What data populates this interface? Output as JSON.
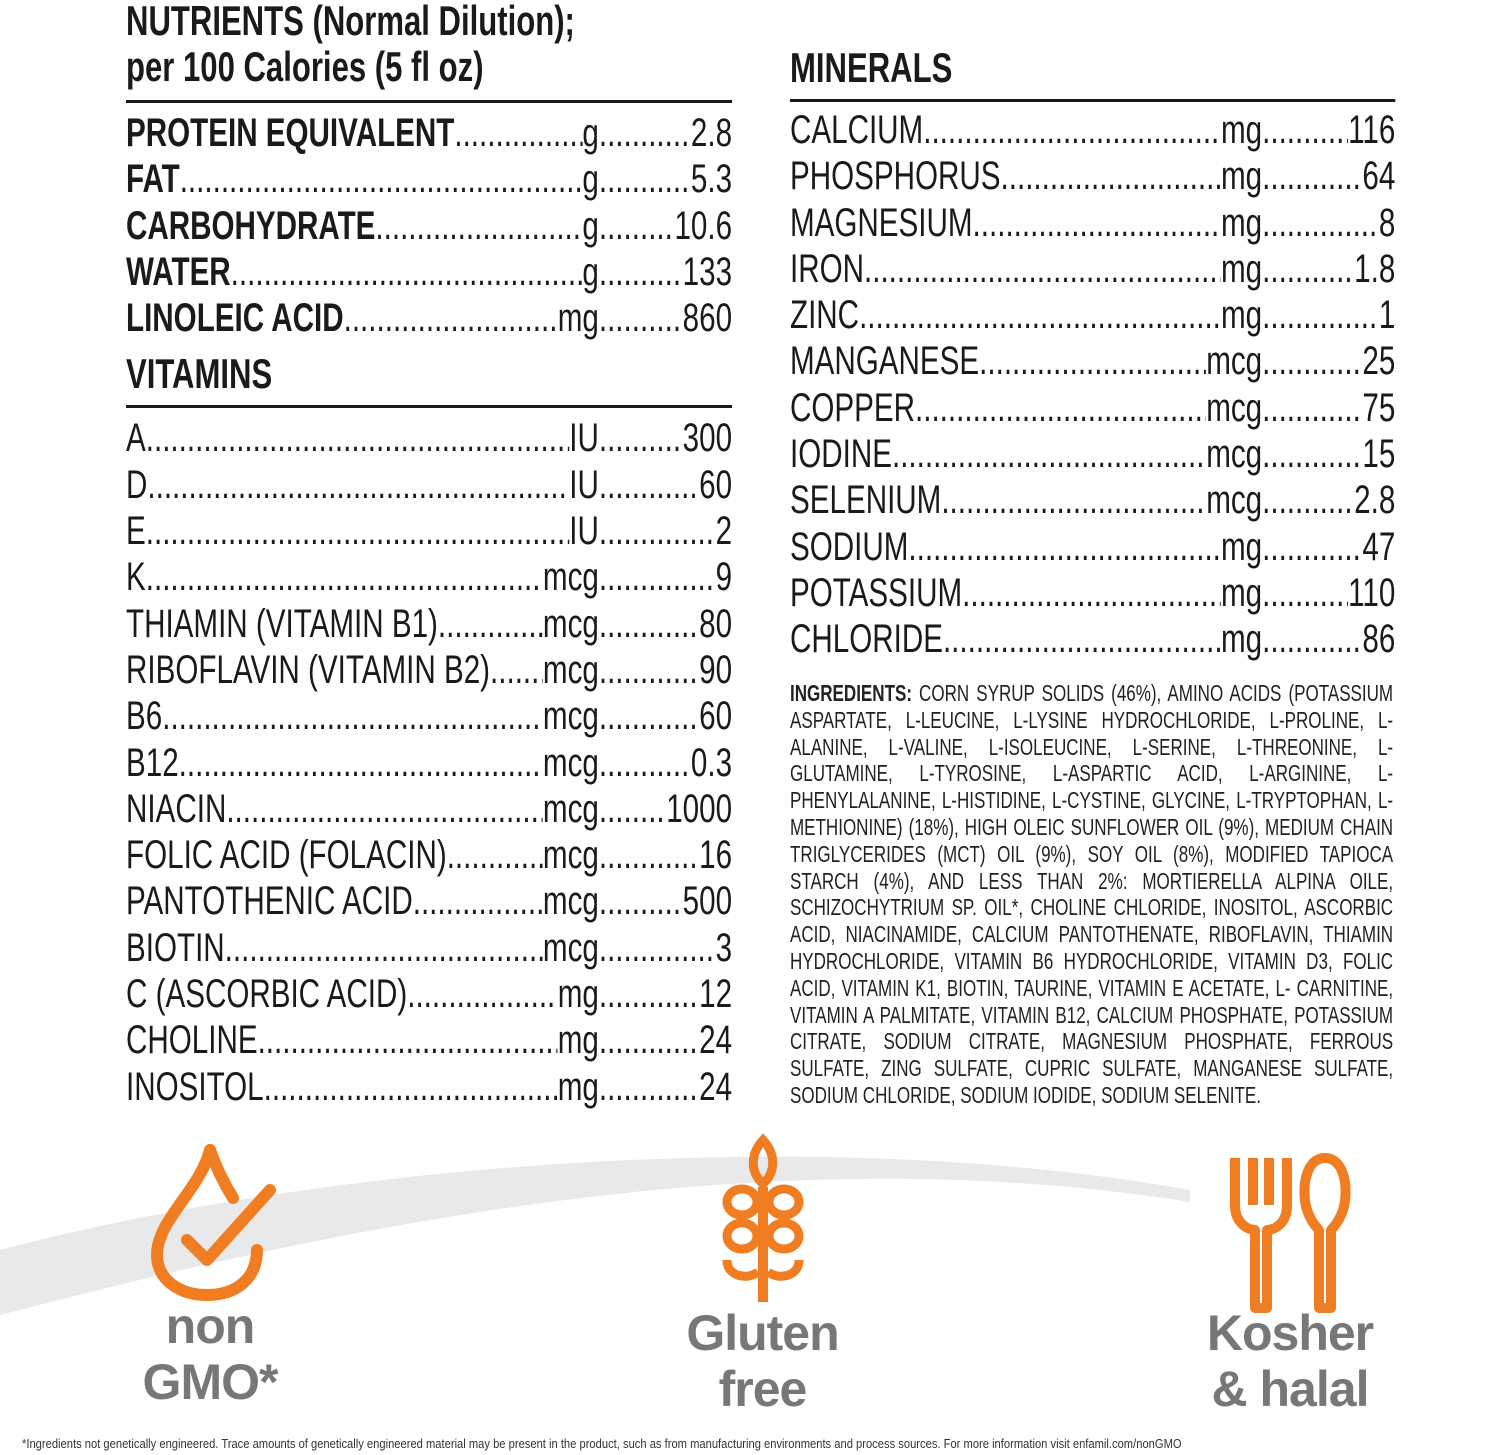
{
  "nutrients": {
    "title_line1": "NUTRIENTS (Normal Dilution);",
    "title_line2": "per 100 Calories (5 fl oz)",
    "rows": [
      {
        "name": "PROTEIN EQUIVALENT",
        "unit": "g",
        "value": "2.8"
      },
      {
        "name": "FAT",
        "unit": "g",
        "value": "5.3"
      },
      {
        "name": "CARBOHYDRATE",
        "unit": "g",
        "value": "10.6"
      },
      {
        "name": "WATER",
        "unit": "g",
        "value": "133"
      },
      {
        "name": "LINOLEIC ACID",
        "unit": "mg",
        "value": "860"
      }
    ]
  },
  "vitamins": {
    "title": "VITAMINS",
    "rows": [
      {
        "name": "A",
        "unit": "IU",
        "value": "300"
      },
      {
        "name": "D",
        "unit": "IU",
        "value": "60"
      },
      {
        "name": "E",
        "unit": "IU",
        "value": "2"
      },
      {
        "name": "K",
        "unit": "mcg",
        "value": "9"
      },
      {
        "name": "THIAMIN (VITAMIN B1)",
        "unit": "mcg",
        "value": "80"
      },
      {
        "name": "RIBOFLAVIN (VITAMIN B2)",
        "unit": "mcg",
        "value": "90"
      },
      {
        "name": "B6",
        "unit": "mcg",
        "value": "60"
      },
      {
        "name": "B12",
        "unit": "mcg",
        "value": "0.3"
      },
      {
        "name": "NIACIN",
        "unit": "mcg",
        "value": "1000"
      },
      {
        "name": "FOLIC ACID (FOLACIN)",
        "unit": "mcg",
        "value": "16"
      },
      {
        "name": "PANTOTHENIC ACID",
        "unit": "mcg",
        "value": "500"
      },
      {
        "name": "BIOTIN",
        "unit": "mcg",
        "value": "3"
      },
      {
        "name": "C (ASCORBIC ACID)",
        "unit": "mg",
        "value": "12"
      },
      {
        "name": "CHOLINE",
        "unit": "mg",
        "value": "24"
      },
      {
        "name": "INOSITOL",
        "unit": "mg",
        "value": "24"
      }
    ]
  },
  "minerals": {
    "title": "MINERALS",
    "rows": [
      {
        "name": "CALCIUM",
        "unit": "mg",
        "value": "116"
      },
      {
        "name": "PHOSPHORUS",
        "unit": "mg",
        "value": "64"
      },
      {
        "name": "MAGNESIUM",
        "unit": "mg",
        "value": "8"
      },
      {
        "name": "IRON",
        "unit": "mg",
        "value": "1.8"
      },
      {
        "name": "ZINC",
        "unit": "mg",
        "value": "1"
      },
      {
        "name": "MANGANESE",
        "unit": "mcg",
        "value": "25"
      },
      {
        "name": "COPPER",
        "unit": "mcg",
        "value": "75"
      },
      {
        "name": "IODINE",
        "unit": "mcg",
        "value": "15"
      },
      {
        "name": "SELENIUM",
        "unit": "mcg",
        "value": "2.8"
      },
      {
        "name": "SODIUM",
        "unit": "mg",
        "value": "47"
      },
      {
        "name": "POTASSIUM",
        "unit": "mg",
        "value": "110"
      },
      {
        "name": "CHLORIDE",
        "unit": "mg",
        "value": "86"
      }
    ]
  },
  "ingredients": {
    "label": "INGREDIENTS:",
    "text": "CORN SYRUP SOLIDS (46%), AMINO ACIDS (POTASSIUM ASPARTATE, L-LEUCINE, L-LYSINE HYDROCHLORIDE, L-PROLINE, L-ALANINE, L-VALINE, L-ISOLEUCINE, L-SERINE, L-THREONINE, L-GLUTAMINE, L-TYROSINE, L-ASPARTIC ACID, L-ARGININE, L-PHENYLALANINE, L-HISTIDINE, L-CYSTINE, GLYCINE, L-TRYPTOPHAN, L-METHIONINE) (18%), HIGH OLEIC SUNFLOWER OIL (9%), MEDIUM CHAIN TRIGLYCERIDES (MCT) OIL (9%), SOY OIL (8%), MODIFIED TAPIOCA STARCH (4%), AND LESS THAN 2%: MORTIERELLA ALPINA OILE, SCHIZOCHYTRIUM SP. OIL*, CHOLINE CHLORIDE, INOSITOL, ASCORBIC ACID, NIACINAMIDE, CALCIUM PANTOTHENATE, RIBOFLAVIN, THIAMIN HYDROCHLORIDE, VITAMIN B6 HYDROCHLORIDE, VITAMIN D3, FOLIC ACID, VITAMIN K1, BIOTIN, TAURINE, VITAMIN E ACETATE, L- CARNITINE, VITAMIN A PALMITATE, VITAMIN B12, CALCIUM PHOSPHATE, POTASSIUM CITRATE, SODIUM CITRATE, MAGNESIUM PHOSPHATE, FERROUS SULFATE, ZING SULFATE, CUPRIC SULFATE, MANGANESE SULFATE, SODIUM CHLORIDE, SODIUM IODIDE, SODIUM SELENITE."
  },
  "badges": [
    {
      "icon": "oil-drop-check-icon",
      "line1": "non",
      "line2": "GMO*"
    },
    {
      "icon": "wheat-icon",
      "line1": "Gluten",
      "line2": "free"
    },
    {
      "icon": "fork-spoon-icon",
      "line1": "Kosher",
      "line2": "& halal"
    }
  ],
  "footnote": "*Ingredients not genetically engineered. Trace amounts of genetically engineered material may be present in the product, such as from manufacturing environments and process sources. For more information visit enfamil.com/nonGMO",
  "colors": {
    "accent": "#f07d22",
    "badge_text": "#777777",
    "swoosh": "#e8e8e8",
    "text": "#1a1a1a"
  }
}
